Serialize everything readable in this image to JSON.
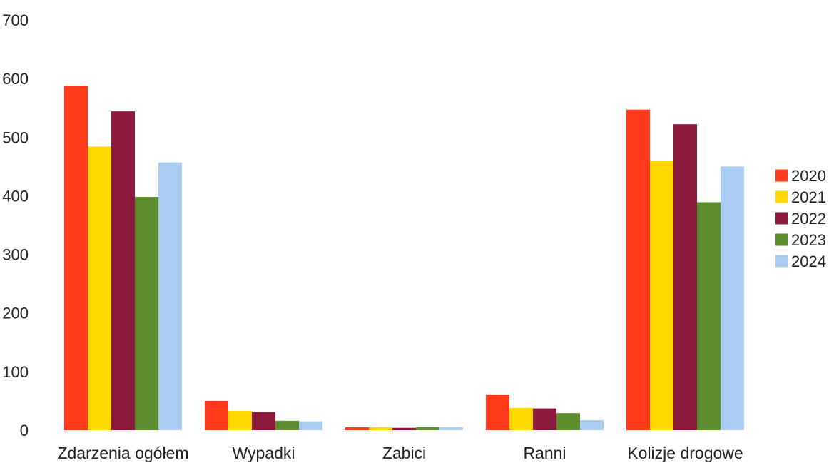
{
  "chart_data": {
    "type": "bar",
    "title": "",
    "xlabel": "",
    "ylabel": "",
    "ylim": [
      0,
      700
    ],
    "yticks": [
      0,
      100,
      200,
      300,
      400,
      500,
      600,
      700
    ],
    "grid": false,
    "legend_position": "right",
    "categories": [
      "Zdarzenia ogółem",
      "Wypadki",
      "Zabici",
      "Ranni",
      "Kolizje drogowe"
    ],
    "series": [
      {
        "name": "2020",
        "color": "#ff3a1a",
        "values": [
          588,
          50,
          5,
          61,
          547
        ]
      },
      {
        "name": "2021",
        "color": "#ffd800",
        "values": [
          484,
          33,
          5,
          38,
          460
        ]
      },
      {
        "name": "2022",
        "color": "#8b1a3c",
        "values": [
          544,
          31,
          4,
          37,
          522
        ]
      },
      {
        "name": "2023",
        "color": "#5c8c2c",
        "values": [
          398,
          16,
          5,
          29,
          389
        ]
      },
      {
        "name": "2024",
        "color": "#aaccf0",
        "values": [
          457,
          15,
          5,
          17,
          450
        ]
      }
    ]
  }
}
